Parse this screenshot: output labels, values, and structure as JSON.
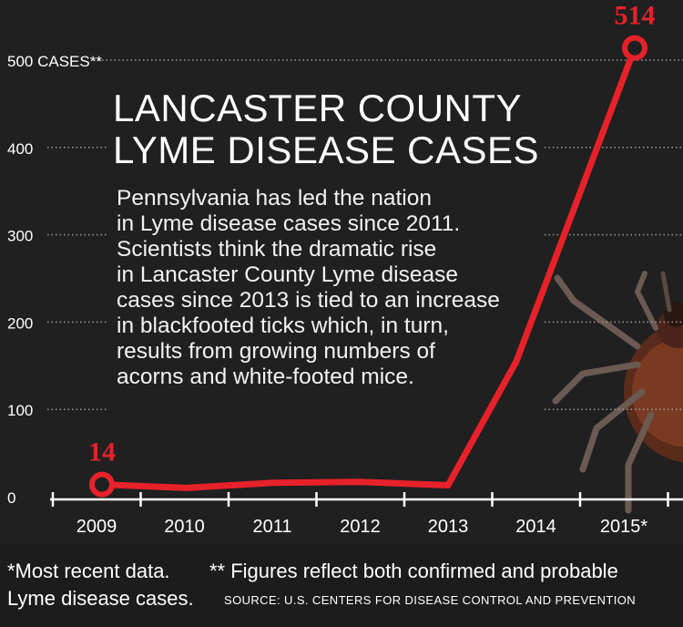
{
  "chart_data": {
    "type": "line",
    "title": "LANCASTER COUNTY LYME DISEASE CASES",
    "description": "Pennsylvania has led the nation in Lyme disease cases since 2011. Scientists think the dramatic rise in Lancaster County Lyme disease cases since 2013 is tied to an increase in blackfooted ticks which, in turn, results from growing numbers of acorns and white-footed mice.",
    "description_lines": [
      "Pennsylvania has led the nation",
      "in Lyme disease cases since 2011.",
      "Scientists think the dramatic rise",
      "in Lancaster County Lyme disease",
      "cases since 2013 is tied to an increase",
      "in blackfooted ticks which, in turn,",
      "results from growing numbers of",
      "acorns and white-footed mice."
    ],
    "categories": [
      "2009",
      "2010",
      "2011",
      "2012",
      "2013",
      "2014",
      "2015*"
    ],
    "series": [
      {
        "values": [
          14,
          10,
          16,
          17,
          13,
          155,
          514
        ]
      }
    ],
    "ylim": [
      0,
      514
    ],
    "yticks": [
      0,
      100,
      200,
      300,
      400,
      500
    ],
    "ytick_labels": [
      "0",
      "100",
      "200",
      "300",
      "400",
      "500 CASES**"
    ],
    "annotations": [
      {
        "category": "2009",
        "value_label": "14"
      },
      {
        "category": "2015*",
        "value_label": "514"
      }
    ],
    "colors": {
      "line": "#e62129",
      "label": "#e62129",
      "background": "#202020",
      "text": "#ffffff"
    },
    "grid": "dotted"
  },
  "footnotes": {
    "line1a": "*Most recent data.",
    "line1b": "** Figures reflect both confirmed and probable",
    "line2a": "Lyme disease cases.",
    "line2b": "SOURCE:  U.S. CENTERS FOR DISEASE CONTROL AND PREVENTION"
  },
  "decoration": {
    "icon": "tick-illustration"
  }
}
